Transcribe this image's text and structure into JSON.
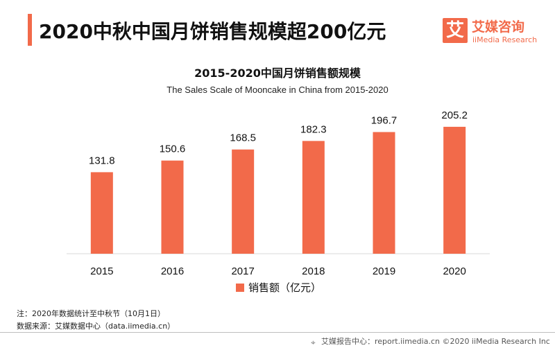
{
  "header": {
    "title": "2020中秋中国月饼销售规模超200亿元"
  },
  "logo": {
    "glyph": "艾",
    "name_cn": "艾媒咨询",
    "name_en": "iiMedia Research"
  },
  "colors": {
    "accent": "#f26a4a",
    "axis": "#d9d9d9"
  },
  "chart_data": {
    "type": "bar",
    "title": "2015-2020中国月饼销售额规模",
    "subtitle": "The  Sales Scale of Mooncake in China from 2015-2020",
    "categories": [
      "2015",
      "2016",
      "2017",
      "2018",
      "2019",
      "2020"
    ],
    "series": [
      {
        "name": "销售额（亿元）",
        "values": [
          131.8,
          150.6,
          168.5,
          182.3,
          196.7,
          205.2
        ]
      }
    ],
    "value_labels": [
      "131.8",
      "150.6",
      "168.5",
      "182.3",
      "196.7",
      "205.2"
    ],
    "ylim": [
      0,
      250
    ],
    "grid": false,
    "legend_position": "bottom-center",
    "xlabel": "",
    "ylabel": ""
  },
  "notes": {
    "note": "注：2020年数据统计至中秋节（10月1日）",
    "source": "数据来源：艾媒数据中心（data.iimedia.cn）"
  },
  "footer": {
    "text": "艾媒报告中心：report.iimedia.cn  ©2020  iiMedia Research  Inc"
  }
}
